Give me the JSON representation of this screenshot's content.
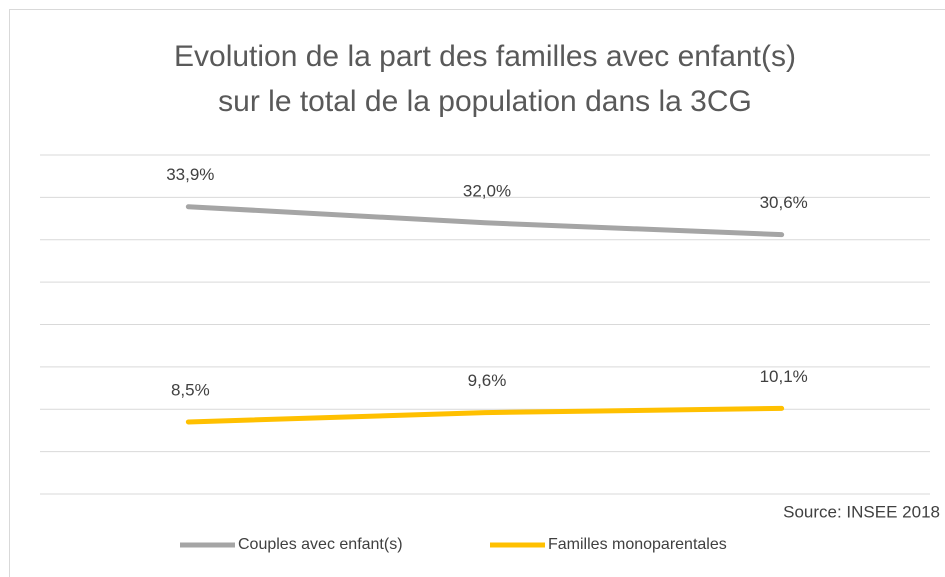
{
  "chart_data": {
    "type": "line",
    "title": [
      "Evolution de la part des familles avec enfant(s)",
      "sur le total de la population dans la 3CG"
    ],
    "annotation": "Source: INSEE  2018",
    "categories": [
      null,
      null,
      null
    ],
    "series": [
      {
        "name": "Couples avec enfant(s)",
        "color": "#a5a5a5",
        "values": [
          33.9,
          32.0,
          30.6
        ],
        "value_labels": [
          "33,9%",
          "32,0%",
          "30,6%"
        ]
      },
      {
        "name": "Familles monoparentales",
        "color": "#ffc000",
        "values": [
          8.5,
          9.6,
          10.1
        ],
        "value_labels": [
          "8,5%",
          "9,6%",
          "10,1%"
        ]
      }
    ],
    "ylim": [
      0,
      40
    ],
    "yticks": [
      0,
      5,
      10,
      15,
      20,
      25,
      30,
      35,
      40
    ],
    "grid": true,
    "legend": "bottom"
  }
}
